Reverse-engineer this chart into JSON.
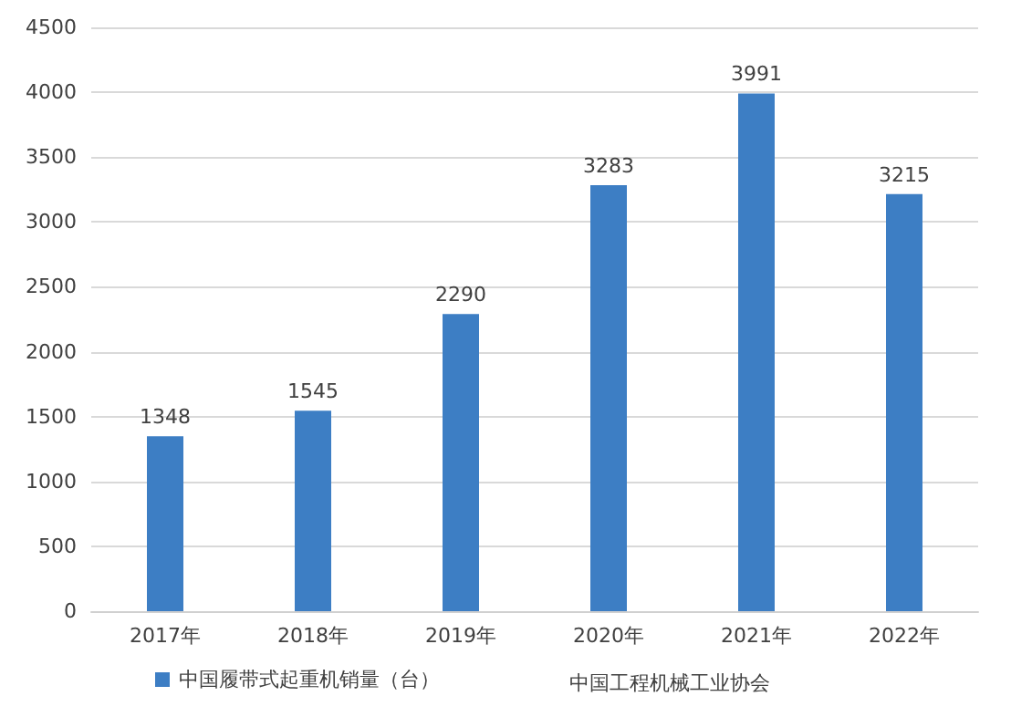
{
  "chart_data": {
    "type": "bar",
    "categories": [
      "2017年",
      "2018年",
      "2019年",
      "2020年",
      "2021年",
      "2022年"
    ],
    "series": [
      {
        "name": "中国履带式起重机销量（台）",
        "color": "#3d7ec4",
        "values": [
          1348,
          1545,
          2290,
          3283,
          3991,
          3215
        ]
      }
    ],
    "ylim": [
      0,
      4500
    ],
    "yticks": [
      0,
      500,
      1000,
      1500,
      2000,
      2500,
      3000,
      3500,
      4000,
      4500
    ],
    "grid": "y",
    "legend": "bottom",
    "data_labels": true,
    "annotations": [
      "中国工程机械工业协会"
    ]
  }
}
